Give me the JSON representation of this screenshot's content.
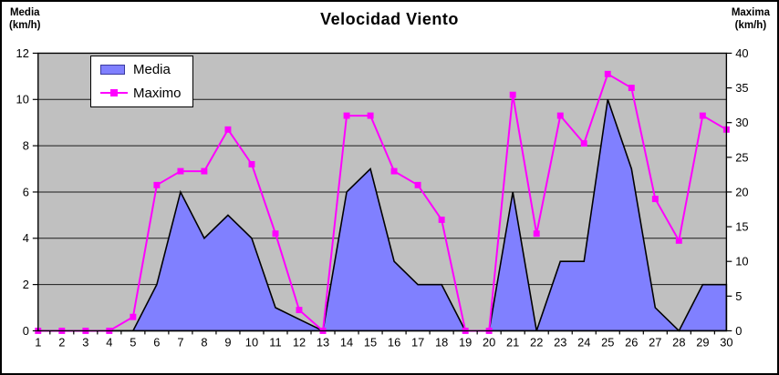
{
  "header": {
    "title": "Velocidad Viento",
    "left_axis_title": "Media\n(km/h)",
    "right_axis_title": "Maxima\n(km/h)"
  },
  "legend": {
    "items": [
      {
        "label": "Media",
        "swatch": "area-swatch-blue"
      },
      {
        "label": "Maximo",
        "swatch": "line-marker-swatch-magenta"
      }
    ]
  },
  "colors": {
    "plot_background": "#C0C0C0",
    "area_fill": "#8080FF",
    "area_border": "#000000",
    "line_color": "#FF00FF",
    "grid_color": "#1a1a1a",
    "axis_color": "#000000"
  },
  "chart_data": {
    "type": "area",
    "title": "Velocidad Viento",
    "x": [
      1,
      2,
      3,
      4,
      5,
      6,
      7,
      8,
      9,
      10,
      11,
      12,
      13,
      14,
      15,
      16,
      17,
      18,
      19,
      20,
      21,
      22,
      23,
      24,
      25,
      26,
      27,
      28,
      29,
      30
    ],
    "series": [
      {
        "name": "Media",
        "type": "area",
        "axis": "left",
        "color": "#8080FF",
        "values": [
          0,
          0,
          0,
          0,
          0,
          2,
          6,
          4,
          5,
          4,
          1,
          0.5,
          0,
          6,
          7,
          3,
          2,
          2,
          0,
          0,
          6,
          0,
          3,
          3,
          10,
          7,
          1,
          0,
          2,
          2
        ]
      },
      {
        "name": "Maximo",
        "type": "line",
        "axis": "right",
        "marker": "square",
        "color": "#FF00FF",
        "values": [
          0,
          0,
          0,
          0,
          2,
          21,
          23,
          23,
          29,
          24,
          14,
          3,
          0,
          31,
          31,
          23,
          21,
          16,
          0,
          0,
          34,
          14,
          31,
          27,
          37,
          35,
          19,
          13,
          31,
          29
        ]
      }
    ],
    "left_axis": {
      "label": "Media (km/h)",
      "min": 0,
      "max": 12,
      "ticks": [
        0,
        2,
        4,
        6,
        8,
        10,
        12
      ]
    },
    "right_axis": {
      "label": "Maxima (km/h)",
      "min": 0,
      "max": 40,
      "ticks": [
        0,
        5,
        10,
        15,
        20,
        25,
        30,
        35,
        40
      ]
    },
    "grid": true,
    "legend_position": "top-left-inside"
  }
}
